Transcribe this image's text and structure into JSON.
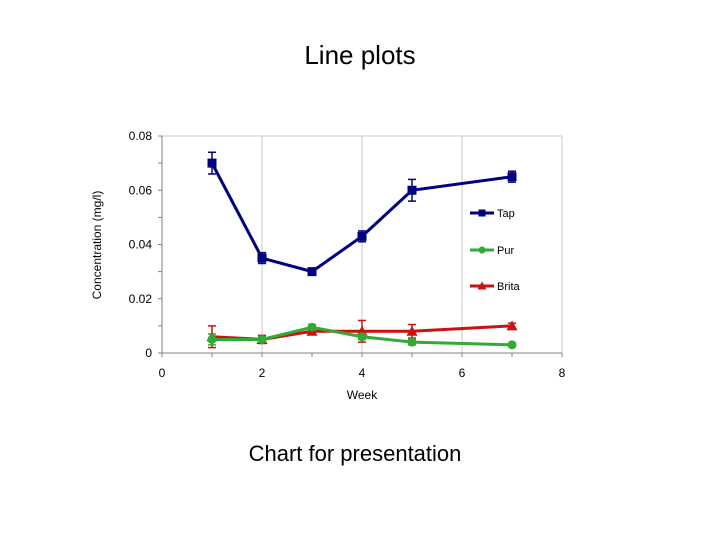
{
  "slide": {
    "title": "Line plots",
    "caption": "Chart for presentation"
  },
  "chart_data": {
    "type": "line",
    "xlabel": "Week",
    "ylabel": "Concentration (mg/l)",
    "xlim": [
      0,
      8
    ],
    "ylim": [
      0,
      0.08
    ],
    "x_ticks": [
      0,
      2,
      4,
      6,
      8
    ],
    "x_tick_labels": [
      "0",
      "2",
      "4",
      "6",
      "8"
    ],
    "y_ticks": [
      0,
      0.02,
      0.04,
      0.06,
      0.08
    ],
    "y_tick_labels": [
      "0",
      "0.02",
      "0.04",
      "0.06",
      "0.08"
    ],
    "grid": "vertical",
    "legend_position": "right",
    "series": [
      {
        "name": "Tap",
        "color": "#000080",
        "marker": "square",
        "x": [
          1,
          2,
          3,
          4,
          5,
          7
        ],
        "y": [
          0.07,
          0.035,
          0.03,
          0.043,
          0.06,
          0.065
        ],
        "error": [
          0.004,
          0.002,
          0.001,
          0.002,
          0.004,
          0.002
        ]
      },
      {
        "name": "Pur",
        "color": "#33aa33",
        "marker": "circle",
        "x": [
          1,
          2,
          3,
          4,
          5,
          7
        ],
        "y": [
          0.005,
          0.005,
          0.0095,
          0.006,
          0.004,
          0.003
        ],
        "error": [
          0.002,
          0.001,
          0.001,
          0.001,
          0.001,
          0.0005
        ]
      },
      {
        "name": "Brita",
        "color": "#cc1111",
        "marker": "triangle",
        "x": [
          1,
          2,
          3,
          4,
          5,
          7
        ],
        "y": [
          0.006,
          0.005,
          0.008,
          0.008,
          0.008,
          0.01
        ],
        "error": [
          0.004,
          0.0015,
          0.001,
          0.004,
          0.0025,
          0.001
        ]
      }
    ]
  }
}
